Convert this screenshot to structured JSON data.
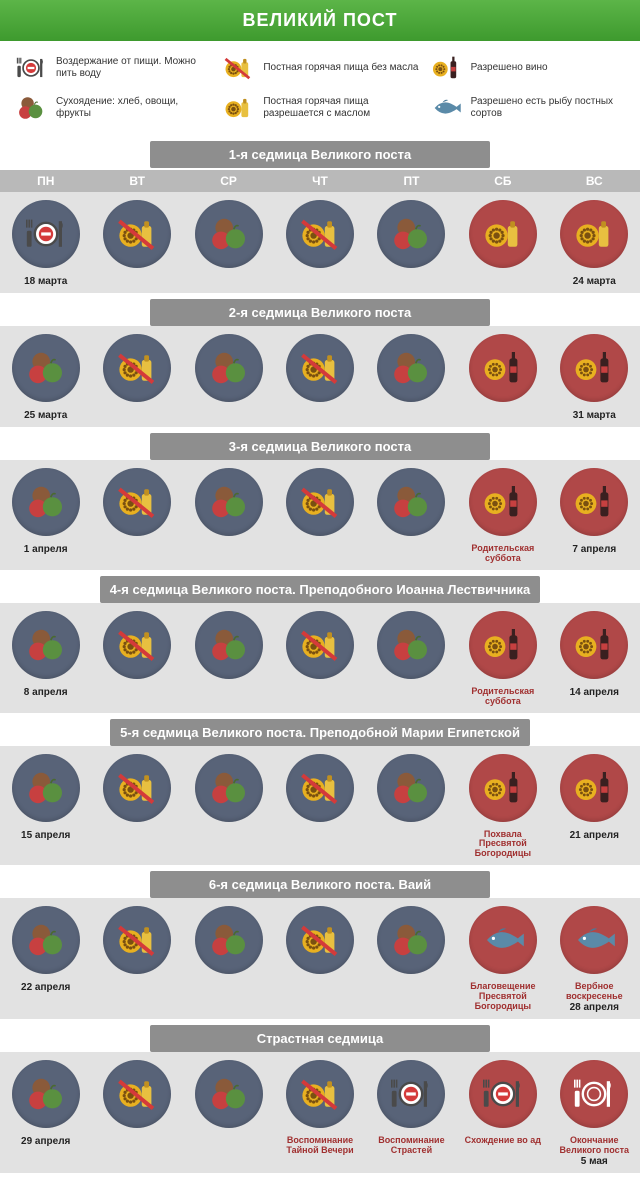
{
  "title": "ВЕЛИКИЙ ПОСТ",
  "colors": {
    "header_gradient_top": "#5cb548",
    "header_gradient_bottom": "#3e9a2e",
    "week_title_bg": "#8e8e8e",
    "day_header_bg": "#b9b9b9",
    "row_bg": "#e2e2e2",
    "circle_blue": "#586378",
    "circle_red": "#b04848",
    "note_color": "#a03030",
    "date_color": "#222222"
  },
  "day_names": [
    "ПН",
    "ВТ",
    "СР",
    "ЧТ",
    "ПТ",
    "СБ",
    "ВС"
  ],
  "icon_types": {
    "fasting": "Воздержание от пищи. Можно пить воду",
    "dry": "Сухоядение: хлеб, овощи, фрукты",
    "hot_no_oil": "Постная горячая пища без масла",
    "hot_oil": "Постная горячая пища разрешается с маслом",
    "wine": "Разрешено вино",
    "fish": "Разрешено есть рыбу постных сортов"
  },
  "legend": [
    {
      "icon": "fasting",
      "label": "Воздержание от пищи. Можно пить воду"
    },
    {
      "icon": "hot_no_oil",
      "label": "Постная горячая пища без масла"
    },
    {
      "icon": "wine",
      "label": "Разрешено вино"
    },
    {
      "icon": "dry",
      "label": "Сухоядение: хлеб, овощи, фрукты"
    },
    {
      "icon": "hot_oil",
      "label": "Постная горячая пища разрешается с маслом"
    },
    {
      "icon": "fish",
      "label": "Разрешено есть рыбу постных сортов"
    }
  ],
  "weeks": [
    {
      "title": "1-я седмица Великого поста",
      "show_day_header": true,
      "days": [
        {
          "icon": "fasting",
          "bg": "blue",
          "date": "18 марта"
        },
        {
          "icon": "hot_no_oil",
          "bg": "blue"
        },
        {
          "icon": "dry",
          "bg": "blue"
        },
        {
          "icon": "hot_no_oil",
          "bg": "blue"
        },
        {
          "icon": "dry",
          "bg": "blue"
        },
        {
          "icon": "hot_oil",
          "bg": "red"
        },
        {
          "icon": "hot_oil",
          "bg": "red",
          "date": "24 марта"
        }
      ]
    },
    {
      "title": "2-я седмица Великого поста",
      "days": [
        {
          "icon": "dry",
          "bg": "blue",
          "date": "25 марта"
        },
        {
          "icon": "hot_no_oil",
          "bg": "blue"
        },
        {
          "icon": "dry",
          "bg": "blue"
        },
        {
          "icon": "hot_no_oil",
          "bg": "blue"
        },
        {
          "icon": "dry",
          "bg": "blue"
        },
        {
          "icon": "wine",
          "bg": "red"
        },
        {
          "icon": "wine",
          "bg": "red",
          "date": "31 марта"
        }
      ]
    },
    {
      "title": "3-я седмица Великого поста",
      "days": [
        {
          "icon": "dry",
          "bg": "blue",
          "date": "1 апреля"
        },
        {
          "icon": "hot_no_oil",
          "bg": "blue"
        },
        {
          "icon": "dry",
          "bg": "blue"
        },
        {
          "icon": "hot_no_oil",
          "bg": "blue"
        },
        {
          "icon": "dry",
          "bg": "blue"
        },
        {
          "icon": "wine",
          "bg": "red",
          "note": "Родительская суббота"
        },
        {
          "icon": "wine",
          "bg": "red",
          "date": "7 апреля"
        }
      ]
    },
    {
      "title": "4-я седмица Великого поста. Преподобного Иоанна Лествичника",
      "days": [
        {
          "icon": "dry",
          "bg": "blue",
          "date": "8 апреля"
        },
        {
          "icon": "hot_no_oil",
          "bg": "blue"
        },
        {
          "icon": "dry",
          "bg": "blue"
        },
        {
          "icon": "hot_no_oil",
          "bg": "blue"
        },
        {
          "icon": "dry",
          "bg": "blue"
        },
        {
          "icon": "wine",
          "bg": "red",
          "note": "Родительская суббота"
        },
        {
          "icon": "wine",
          "bg": "red",
          "date": "14 апреля"
        }
      ]
    },
    {
      "title": "5-я седмица Великого поста. Преподобной Марии Египетской",
      "days": [
        {
          "icon": "dry",
          "bg": "blue",
          "date": "15 апреля"
        },
        {
          "icon": "hot_no_oil",
          "bg": "blue"
        },
        {
          "icon": "dry",
          "bg": "blue"
        },
        {
          "icon": "hot_no_oil",
          "bg": "blue"
        },
        {
          "icon": "dry",
          "bg": "blue"
        },
        {
          "icon": "wine",
          "bg": "red",
          "note": "Похвала Пресвятой Богородицы"
        },
        {
          "icon": "wine",
          "bg": "red",
          "date": "21 апреля"
        }
      ]
    },
    {
      "title": "6-я седмица Великого поста. Ваий",
      "days": [
        {
          "icon": "dry",
          "bg": "blue",
          "date": "22 апреля"
        },
        {
          "icon": "hot_no_oil",
          "bg": "blue"
        },
        {
          "icon": "dry",
          "bg": "blue"
        },
        {
          "icon": "hot_no_oil",
          "bg": "blue"
        },
        {
          "icon": "dry",
          "bg": "blue"
        },
        {
          "icon": "fish",
          "bg": "red",
          "note": "Благовещение Пресвятой Богородицы"
        },
        {
          "icon": "fish",
          "bg": "red",
          "date": "28 апреля",
          "note": "Вербное воскресенье"
        }
      ]
    },
    {
      "title": "Страстная седмица",
      "days": [
        {
          "icon": "dry",
          "bg": "blue",
          "date": "29 апреля"
        },
        {
          "icon": "hot_no_oil",
          "bg": "blue"
        },
        {
          "icon": "dry",
          "bg": "blue"
        },
        {
          "icon": "hot_no_oil",
          "bg": "blue",
          "note": "Воспоминание Тайной Вечери"
        },
        {
          "icon": "fasting",
          "bg": "blue",
          "note": "Воспоминание Страстей"
        },
        {
          "icon": "fasting",
          "bg": "red",
          "note": "Схождение во ад"
        },
        {
          "icon": "empty_plate",
          "bg": "red",
          "date": "5 мая",
          "note": "Окончание Великого поста"
        }
      ]
    }
  ]
}
